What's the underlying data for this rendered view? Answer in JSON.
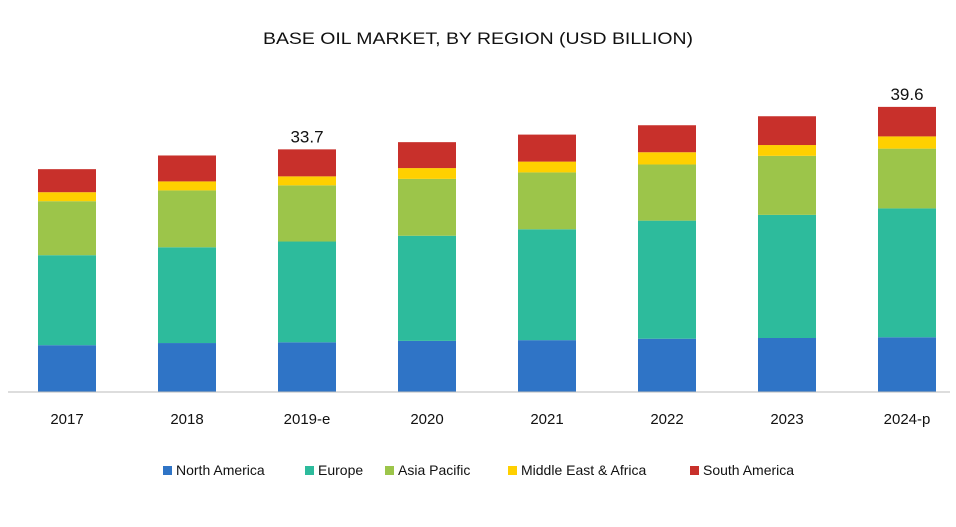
{
  "chart_data": {
    "type": "bar",
    "stacked": true,
    "title": "BASE OIL MARKET, BY REGION (USD BILLION)",
    "xlabel": "",
    "ylabel": "",
    "ylim": [
      0,
      40
    ],
    "grid": false,
    "legend_position": "bottom",
    "categories": [
      "2017",
      "2018",
      "2019-e",
      "2020",
      "2021",
      "2022",
      "2023",
      "2024-p"
    ],
    "series": [
      {
        "name": "North America",
        "color": "#2f74c6",
        "values": [
          6.5,
          6.8,
          6.9,
          7.1,
          7.2,
          7.4,
          7.5,
          7.6
        ]
      },
      {
        "name": "Europe",
        "color": "#2dbb9c",
        "values": [
          12.5,
          13.3,
          14.0,
          14.6,
          15.4,
          16.4,
          17.1,
          17.9
        ]
      },
      {
        "name": "Asia Pacific",
        "color": "#9cc54a",
        "values": [
          7.5,
          7.9,
          7.8,
          7.9,
          7.9,
          7.8,
          8.2,
          8.3
        ]
      },
      {
        "name": "Middle East & Africa",
        "color": "#ffd000",
        "values": [
          1.25,
          1.25,
          1.25,
          1.5,
          1.5,
          1.7,
          1.5,
          1.7
        ]
      },
      {
        "name": "South America",
        "color": "#c8302b",
        "values": [
          3.2,
          3.6,
          3.75,
          3.6,
          3.75,
          3.75,
          4.0,
          4.1
        ]
      }
    ],
    "annotations": [
      {
        "category": "2019-e",
        "text": "33.7"
      },
      {
        "category": "2024-p",
        "text": "39.6"
      }
    ]
  }
}
